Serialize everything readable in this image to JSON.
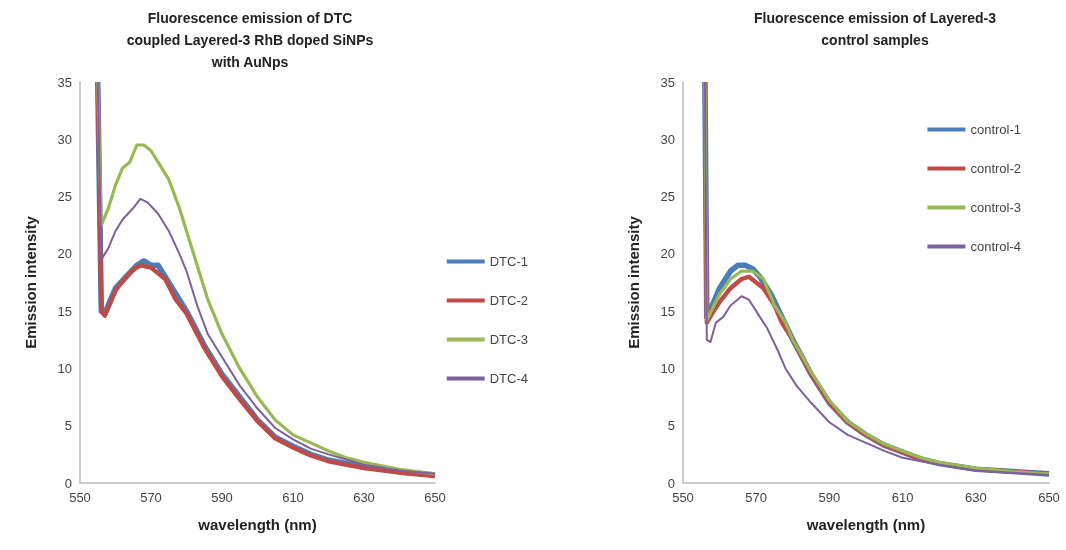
{
  "chart_data": [
    {
      "type": "line",
      "title": "Fluorescence emission of DTC\ncoupled Layered-3 RhB doped SiNPs\nwith AuNps",
      "xlabel": "wavelength (nm)",
      "ylabel": "Emission intensity",
      "xlim": [
        550,
        650
      ],
      "xticks": [
        550,
        570,
        590,
        610,
        630,
        650
      ],
      "ylim": [
        0,
        35
      ],
      "yticks": [
        0,
        5,
        10,
        15,
        20,
        25,
        30,
        35
      ],
      "grid": false,
      "legend": "right",
      "marker": "none",
      "line_style": "solid",
      "series": [
        {
          "name": "DTC-1",
          "color": "#4a7ebb",
          "x": [
            555,
            556,
            557,
            560,
            563,
            566,
            568,
            570,
            572,
            574,
            577,
            580,
            585,
            590,
            595,
            600,
            605,
            610,
            615,
            620,
            630,
            640,
            650
          ],
          "values": [
            35,
            15,
            14.8,
            17,
            18,
            19,
            19.4,
            19,
            19,
            18,
            16.5,
            15,
            12,
            9.5,
            7.5,
            5.5,
            4,
            3.2,
            2.5,
            2,
            1.4,
            1,
            0.7
          ]
        },
        {
          "name": "DTC-2",
          "color": "#be4b48",
          "x": [
            555,
            556,
            557,
            560,
            563,
            565,
            567,
            570,
            574,
            577,
            580,
            585,
            590,
            595,
            600,
            605,
            610,
            615,
            620,
            630,
            640,
            650
          ],
          "values": [
            35,
            15,
            14.6,
            16.8,
            18,
            18.6,
            19,
            18.8,
            17.8,
            16,
            14.8,
            11.8,
            9.3,
            7.3,
            5.4,
            3.9,
            3.1,
            2.4,
            1.9,
            1.3,
            0.9,
            0.6
          ]
        },
        {
          "name": "DTC-3",
          "color": "#98b954",
          "x": [
            555,
            556,
            558,
            560,
            562,
            564,
            566,
            568,
            570,
            572,
            575,
            578,
            580,
            583,
            586,
            590,
            595,
            600,
            605,
            610,
            615,
            620,
            625,
            630,
            635,
            640,
            645,
            650
          ],
          "values": [
            35,
            22.5,
            24,
            26,
            27.5,
            28,
            29.5,
            29.5,
            29,
            28,
            26.5,
            24,
            22,
            19,
            16,
            13,
            10,
            7.5,
            5.5,
            4.2,
            3.5,
            2.8,
            2.2,
            1.8,
            1.5,
            1.2,
            1,
            0.8
          ]
        },
        {
          "name": "DTC-4",
          "color": "#7d60a0",
          "x": [
            555,
            556,
            558,
            560,
            562,
            565,
            567,
            569,
            572,
            575,
            578,
            580,
            583,
            586,
            590,
            595,
            600,
            605,
            610,
            615,
            620,
            630,
            640,
            650
          ],
          "values": [
            35,
            19.5,
            20.5,
            22,
            23,
            24,
            24.8,
            24.5,
            23.5,
            22,
            20,
            18.5,
            15.5,
            13,
            11,
            8.5,
            6.5,
            4.8,
            3.8,
            3,
            2.5,
            1.6,
            1.1,
            0.8
          ]
        }
      ]
    },
    {
      "type": "line",
      "title": "Fluorescence emission of Layered-3\ncontrol samples",
      "xlabel": "wavelength (nm)",
      "ylabel": "Emission intensity",
      "xlim": [
        550,
        650
      ],
      "xticks": [
        550,
        570,
        590,
        610,
        630,
        650
      ],
      "ylim": [
        0,
        35
      ],
      "yticks": [
        0,
        5,
        10,
        15,
        20,
        25,
        30,
        35
      ],
      "grid": false,
      "legend": "top right",
      "marker": "none",
      "line_style": "solid",
      "series": [
        {
          "name": "control-1",
          "color": "#4a7ebb",
          "x": [
            556,
            556.5,
            558,
            560,
            563,
            565,
            567,
            569,
            571,
            574,
            577,
            580,
            585,
            590,
            595,
            600,
            605,
            610,
            615,
            620,
            630,
            640,
            650
          ],
          "values": [
            35,
            14.5,
            15.5,
            17,
            18.5,
            19,
            19,
            18.7,
            18,
            16.5,
            14.5,
            12.5,
            9.5,
            7,
            5.3,
            4.2,
            3.3,
            2.7,
            2.1,
            1.7,
            1.2,
            1,
            0.8
          ]
        },
        {
          "name": "control-2",
          "color": "#be4b48",
          "x": [
            556,
            556.5,
            558,
            560,
            563,
            566,
            568,
            570,
            572,
            575,
            577,
            580,
            585,
            590,
            595,
            600,
            605,
            610,
            615,
            620,
            630,
            640,
            650
          ],
          "values": [
            35,
            14,
            14.8,
            15.8,
            17,
            17.8,
            18,
            17.5,
            17,
            15.5,
            14,
            12.5,
            9.5,
            7,
            5.3,
            4.2,
            3.3,
            2.7,
            2.1,
            1.7,
            1.2,
            1,
            0.8
          ]
        },
        {
          "name": "control-3",
          "color": "#98b954",
          "x": [
            556,
            556.5,
            560,
            563,
            566,
            569,
            572,
            575,
            578,
            580,
            585,
            590,
            595,
            600,
            605,
            610,
            615,
            620,
            630,
            640,
            650
          ],
          "values": [
            35,
            14.2,
            16.5,
            17.8,
            18.5,
            18.5,
            17.8,
            15.5,
            14,
            12.5,
            9.7,
            7.2,
            5.4,
            4.3,
            3.4,
            2.8,
            2.2,
            1.8,
            1.3,
            1,
            0.8
          ]
        },
        {
          "name": "control-4",
          "color": "#7d60a0",
          "x": [
            556,
            556.5,
            557.5,
            559,
            561,
            563,
            566,
            568,
            570,
            573,
            576,
            578,
            581,
            585,
            590,
            595,
            600,
            605,
            610,
            620,
            630,
            640,
            650
          ],
          "values": [
            35,
            12.5,
            12.3,
            14,
            14.5,
            15.5,
            16.3,
            16,
            15,
            13.5,
            11.5,
            10,
            8.5,
            7,
            5.3,
            4.2,
            3.5,
            2.8,
            2.2,
            1.6,
            1.1,
            0.9,
            0.7
          ]
        }
      ]
    }
  ]
}
